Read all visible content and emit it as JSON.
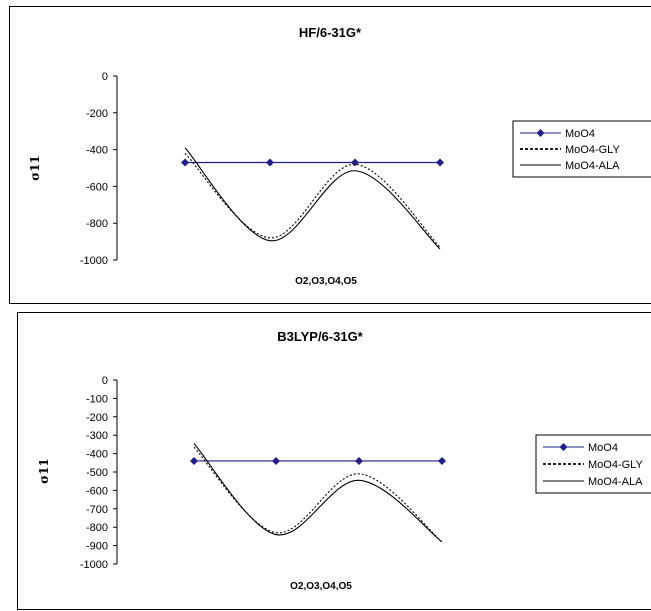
{
  "chart_data": [
    {
      "type": "line",
      "title": "HF/6-31G*",
      "xlabel": "O2,O3,O4,O5",
      "ylabel": "σ11",
      "categories": [
        "O2",
        "O3",
        "O4",
        "O5"
      ],
      "ylim": [
        -1000,
        0
      ],
      "yticks": [
        0,
        -200,
        -400,
        -600,
        -800,
        -1000
      ],
      "ytick_labels": [
        "0",
        "-200",
        "-400",
        "-600",
        "-800",
        "-1000"
      ],
      "legend_position": "right",
      "series": [
        {
          "name": "MoO4",
          "values": [
            -470,
            -470,
            -470,
            -470
          ],
          "style": "solid-marker",
          "color": "#1f1f8f"
        },
        {
          "name": "MoO4-GLY",
          "values": [
            -420,
            -880,
            -480,
            -930
          ],
          "style": "dotted",
          "color": "#000000"
        },
        {
          "name": "MoO4-ALA",
          "values": [
            -390,
            -895,
            -515,
            -940
          ],
          "style": "solid",
          "color": "#000000"
        }
      ]
    },
    {
      "type": "line",
      "title": "B3LYP/6-31G*",
      "xlabel": "O2,O3,O4,O5",
      "ylabel": "σ11",
      "categories": [
        "O2",
        "O3",
        "O4",
        "O5"
      ],
      "ylim": [
        -1000,
        0
      ],
      "yticks": [
        0,
        -100,
        -200,
        -300,
        -400,
        -500,
        -600,
        -700,
        -800,
        -900,
        -1000
      ],
      "ytick_labels": [
        "0",
        "-100",
        "-200",
        "-300",
        "-400",
        "-500",
        "-600",
        "-700",
        "-800",
        "-900",
        "-1000"
      ],
      "legend_position": "right",
      "series": [
        {
          "name": "MoO4",
          "values": [
            -440,
            -440,
            -440,
            -440
          ],
          "style": "solid-marker",
          "color": "#1f1f8f"
        },
        {
          "name": "MoO4-GLY",
          "values": [
            -365,
            -830,
            -510,
            -880
          ],
          "style": "dotted",
          "color": "#000000"
        },
        {
          "name": "MoO4-ALA",
          "values": [
            -345,
            -840,
            -545,
            -880
          ],
          "style": "solid",
          "color": "#000000"
        }
      ]
    }
  ]
}
